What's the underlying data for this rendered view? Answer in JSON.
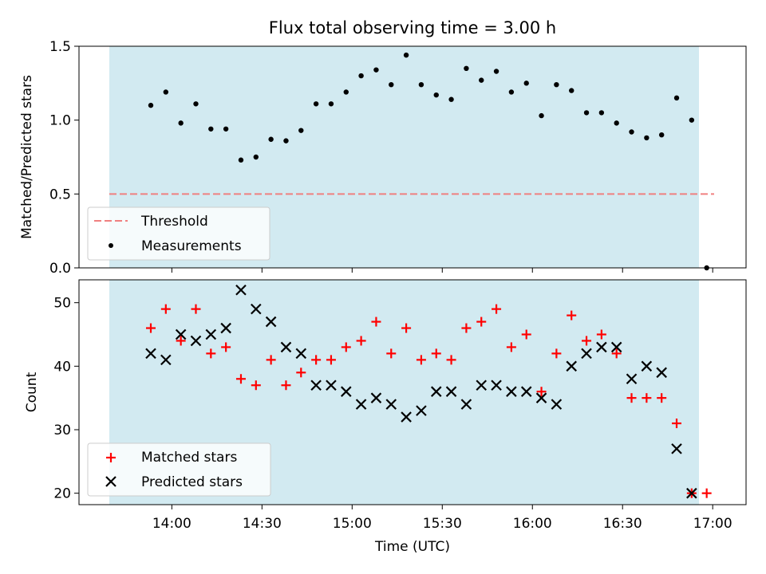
{
  "chart_data": [
    {
      "type": "scatter",
      "title": "Flux total observing time = 3.00 h",
      "ylabel": "Matched/Predicted stars",
      "xlabel": "",
      "ylim": [
        0,
        1.5
      ],
      "yticks": [
        "0.0",
        "0.5",
        "1.0",
        "1.5"
      ],
      "colors": {
        "shade": "#add8e6",
        "threshold": "#f08080",
        "measure": "#000000"
      },
      "threshold": 0.5,
      "legend": {
        "placement": "lower-left",
        "entries": [
          "Threshold",
          "Measurements"
        ]
      },
      "series": [
        {
          "name": "Measurements",
          "x": [
            "13:53",
            "13:58",
            "14:03",
            "14:08",
            "14:13",
            "14:18",
            "14:23",
            "14:28",
            "14:33",
            "14:38",
            "14:43",
            "14:48",
            "14:53",
            "14:58",
            "15:03",
            "15:08",
            "15:13",
            "15:18",
            "15:23",
            "15:28",
            "15:33",
            "15:38",
            "15:43",
            "15:48",
            "15:53",
            "15:58",
            "16:03",
            "16:08",
            "16:13",
            "16:18",
            "16:23",
            "16:28",
            "16:33",
            "16:38",
            "16:43",
            "16:48",
            "16:53",
            "16:58"
          ],
          "y": [
            1.1,
            1.19,
            0.98,
            1.11,
            0.94,
            0.94,
            0.73,
            0.75,
            0.87,
            0.86,
            0.93,
            1.11,
            1.11,
            1.19,
            1.3,
            1.34,
            1.24,
            1.44,
            1.24,
            1.17,
            1.14,
            1.35,
            1.27,
            1.33,
            1.19,
            1.25,
            1.03,
            1.24,
            1.2,
            1.05,
            1.05,
            0.98,
            0.92,
            0.88,
            0.9,
            1.15,
            1.0,
            0.0
          ]
        }
      ]
    },
    {
      "type": "scatter",
      "ylabel": "Count",
      "xlabel": "Time (UTC)",
      "ylim": [
        18.2,
        53.6
      ],
      "yticks": [
        "20",
        "30",
        "40",
        "50"
      ],
      "xticks": [
        "14:00",
        "14:30",
        "15:00",
        "15:30",
        "16:00",
        "16:30",
        "17:00"
      ],
      "colors": {
        "matched": "#ff0000",
        "predicted": "#000000"
      },
      "legend": {
        "placement": "lower-left",
        "entries": [
          "Matched stars",
          "Predicted stars"
        ]
      },
      "series": [
        {
          "name": "Matched stars",
          "x": [
            "13:53",
            "13:58",
            "14:03",
            "14:08",
            "14:13",
            "14:18",
            "14:23",
            "14:28",
            "14:33",
            "14:38",
            "14:43",
            "14:48",
            "14:53",
            "14:58",
            "15:03",
            "15:08",
            "15:13",
            "15:18",
            "15:23",
            "15:28",
            "15:33",
            "15:38",
            "15:43",
            "15:48",
            "15:53",
            "15:58",
            "16:03",
            "16:08",
            "16:13",
            "16:18",
            "16:23",
            "16:28",
            "16:33",
            "16:38",
            "16:43",
            "16:48",
            "16:53",
            "16:58"
          ],
          "y": [
            46,
            49,
            44,
            49,
            42,
            43,
            38,
            37,
            41,
            37,
            39,
            41,
            41,
            43,
            44,
            47,
            42,
            46,
            41,
            42,
            41,
            46,
            47,
            49,
            43,
            45,
            36,
            42,
            48,
            44,
            45,
            42,
            35,
            35,
            35,
            31,
            20,
            20
          ]
        },
        {
          "name": "Predicted stars",
          "x": [
            "13:53",
            "13:58",
            "14:03",
            "14:08",
            "14:13",
            "14:18",
            "14:23",
            "14:28",
            "14:33",
            "14:38",
            "14:43",
            "14:48",
            "14:53",
            "14:58",
            "15:03",
            "15:08",
            "15:13",
            "15:18",
            "15:23",
            "15:28",
            "15:33",
            "15:38",
            "15:43",
            "15:48",
            "15:53",
            "15:58",
            "16:03",
            "16:08",
            "16:13",
            "16:18",
            "16:23",
            "16:28",
            "16:33",
            "16:38",
            "16:43",
            "16:48",
            "16:53"
          ],
          "y": [
            42,
            41,
            45,
            44,
            45,
            46,
            52,
            49,
            47,
            43,
            42,
            37,
            37,
            36,
            34,
            35,
            34,
            32,
            33,
            36,
            36,
            34,
            37,
            37,
            36,
            36,
            35,
            34,
            40,
            42,
            43,
            43,
            38,
            40,
            39,
            27,
            20
          ]
        }
      ]
    }
  ]
}
